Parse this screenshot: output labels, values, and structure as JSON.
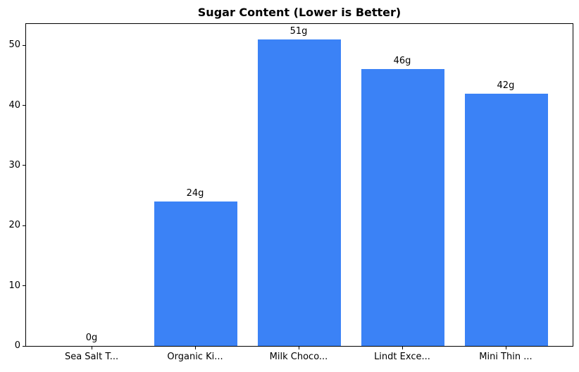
{
  "chart_data": {
    "type": "bar",
    "title": "Sugar Content (Lower is Better)",
    "categories": [
      "Sea Salt T...",
      "Organic Ki...",
      "Milk Choco...",
      "Lindt Exce...",
      "Mini Thin ..."
    ],
    "values": [
      0,
      24,
      51,
      46,
      42
    ],
    "value_labels": [
      "0g",
      "24g",
      "51g",
      "46g",
      "42g"
    ],
    "xlabel": "",
    "ylabel": "",
    "yticks": [
      0,
      10,
      20,
      30,
      40,
      50
    ],
    "ylim": [
      0,
      53.55
    ],
    "bar_color": "#3b82f6",
    "grid": false,
    "legend_position": "none",
    "background_color": "#ffffff",
    "axis_color": "#000000"
  }
}
